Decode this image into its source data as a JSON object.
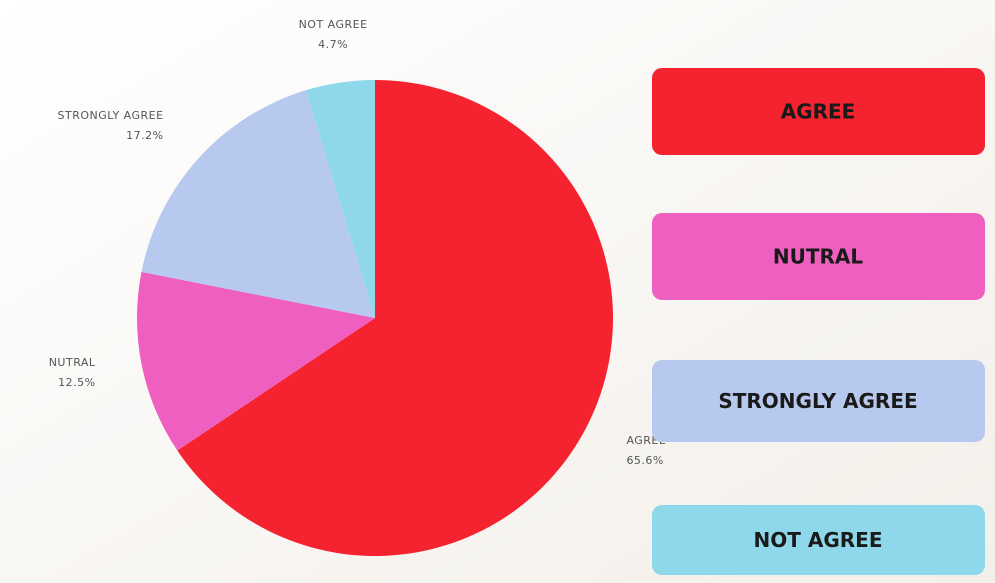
{
  "chart_data": {
    "type": "pie",
    "categories": [
      "AGREE",
      "NUTRAL",
      "STRONGLY AGREE",
      "NOT AGREE"
    ],
    "values": [
      65.6,
      12.5,
      17.2,
      4.7
    ],
    "value_labels": [
      "65.6%",
      "12.5%",
      "17.2%",
      "4.7%"
    ],
    "colors": [
      "#f5222f",
      "#ee5fc0",
      "#b7c9ee",
      "#8fd8ec"
    ]
  }
}
